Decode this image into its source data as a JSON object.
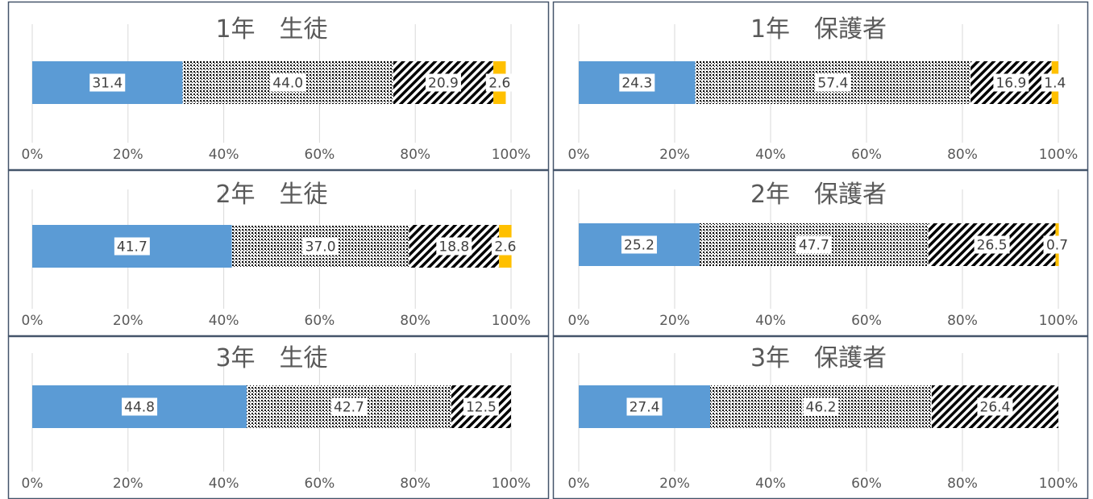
{
  "tick_labels": [
    "0%",
    "20%",
    "40%",
    "60%",
    "80%",
    "100%"
  ],
  "segment_styles": [
    "solid-blue",
    "dots",
    "diagonal-stripes",
    "solid-orange"
  ],
  "colors": {
    "seg1": "#5b9bd5",
    "seg2": "#000000",
    "seg3": "#000000",
    "seg4": "#ffc000",
    "frame": "#44546a",
    "grid": "#d9d9d9",
    "text": "#595959"
  },
  "chart_data": [
    {
      "type": "bar",
      "title": "1年　生徒",
      "stacked": "percent",
      "values": [
        31.4,
        44.0,
        20.9,
        2.6
      ],
      "labels": [
        "31.4",
        "44.0",
        "20.9",
        "2.6"
      ],
      "xlim": [
        0,
        100
      ]
    },
    {
      "type": "bar",
      "title": "1年　保護者",
      "stacked": "percent",
      "values": [
        24.3,
        57.4,
        16.9,
        1.4
      ],
      "labels": [
        "24.3",
        "57.4",
        "16.9",
        "1.4"
      ],
      "xlim": [
        0,
        100
      ]
    },
    {
      "type": "bar",
      "title": "2年　生徒",
      "stacked": "percent",
      "values": [
        41.7,
        37.0,
        18.8,
        2.6
      ],
      "labels": [
        "41.7",
        "37.0",
        "18.8",
        "2.6"
      ],
      "xlim": [
        0,
        100
      ]
    },
    {
      "type": "bar",
      "title": "2年　保護者",
      "stacked": "percent",
      "values": [
        25.2,
        47.7,
        26.5,
        0.7
      ],
      "labels": [
        "25.2",
        "47.7",
        "26.5",
        "0.7"
      ],
      "xlim": [
        0,
        100
      ]
    },
    {
      "type": "bar",
      "title": "3年　生徒",
      "stacked": "percent",
      "values": [
        44.8,
        42.7,
        12.5
      ],
      "labels": [
        "44.8",
        "42.7",
        "12.5"
      ],
      "xlim": [
        0,
        100
      ]
    },
    {
      "type": "bar",
      "title": "3年　保護者",
      "stacked": "percent",
      "values": [
        27.4,
        46.2,
        26.4
      ],
      "labels": [
        "27.4",
        "46.2",
        "26.4"
      ],
      "xlim": [
        0,
        100
      ]
    }
  ]
}
